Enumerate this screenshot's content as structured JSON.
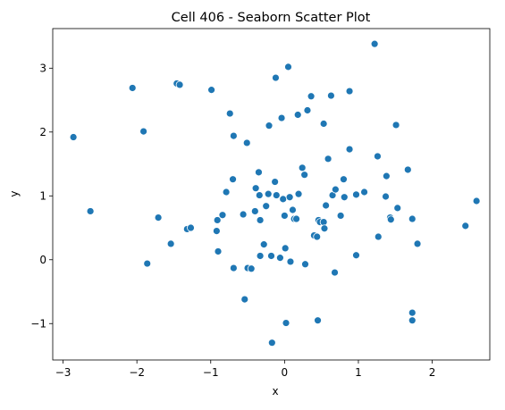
{
  "chart_data": {
    "type": "scatter",
    "title": "Cell 406 - Seaborn Scatter Plot",
    "xlabel": "x",
    "ylabel": "y",
    "color": "#1f77b4",
    "x": [
      -2.86,
      -2.63,
      -2.06,
      -1.91,
      -1.86,
      -1.71,
      -1.54,
      -1.46,
      -1.42,
      -1.32,
      -1.27,
      -0.99,
      -0.92,
      -0.91,
      -0.9,
      -0.84,
      -0.79,
      -0.74,
      -0.7,
      -0.69,
      -0.69,
      -0.56,
      -0.54,
      -0.51,
      -0.5,
      -0.45,
      -0.4,
      -0.39,
      -0.35,
      -0.34,
      -0.33,
      -0.33,
      -0.28,
      -0.25,
      -0.22,
      -0.21,
      -0.18,
      -0.17,
      -0.13,
      -0.12,
      -0.11,
      -0.06,
      -0.04,
      -0.02,
      0.0,
      0.01,
      0.02,
      0.05,
      0.07,
      0.08,
      0.11,
      0.13,
      0.16,
      0.18,
      0.19,
      0.24,
      0.27,
      0.28,
      0.31,
      0.36,
      0.4,
      0.44,
      0.45,
      0.46,
      0.48,
      0.53,
      0.53,
      0.54,
      0.56,
      0.59,
      0.63,
      0.65,
      0.68,
      0.69,
      0.76,
      0.8,
      0.81,
      0.88,
      0.88,
      0.97,
      0.97,
      1.08,
      1.22,
      1.26,
      1.27,
      1.37,
      1.38,
      1.43,
      1.44,
      1.51,
      1.53,
      1.67,
      1.73,
      1.73,
      1.73,
      1.8,
      2.45,
      2.6
    ],
    "y": [
      1.92,
      0.76,
      2.69,
      2.01,
      -0.06,
      0.66,
      0.25,
      2.76,
      2.74,
      0.48,
      0.5,
      2.66,
      0.45,
      0.62,
      0.13,
      0.7,
      1.06,
      2.29,
      1.26,
      1.94,
      -0.13,
      0.71,
      -0.62,
      1.83,
      -0.13,
      -0.14,
      0.76,
      1.12,
      1.37,
      1.01,
      0.62,
      0.06,
      0.24,
      0.84,
      1.03,
      2.1,
      0.06,
      -1.3,
      1.22,
      2.85,
      1.01,
      0.03,
      2.22,
      0.95,
      0.69,
      0.18,
      -0.99,
      3.02,
      0.98,
      -0.03,
      0.78,
      0.64,
      0.64,
      2.27,
      1.03,
      1.44,
      1.33,
      -0.07,
      2.34,
      2.56,
      0.38,
      0.36,
      -0.95,
      0.62,
      0.59,
      2.13,
      0.59,
      0.49,
      0.85,
      1.58,
      2.57,
      1.01,
      -0.2,
      1.1,
      0.69,
      1.26,
      0.98,
      2.64,
      1.73,
      1.02,
      0.07,
      1.06,
      3.38,
      1.62,
      0.36,
      0.99,
      1.31,
      0.66,
      0.63,
      2.11,
      0.81,
      1.41,
      0.64,
      -0.83,
      -0.95,
      0.25,
      0.53,
      0.92
    ],
    "xlim": [
      -3.14,
      2.78
    ],
    "ylim": [
      -1.57,
      3.62
    ],
    "xticks": [
      {
        "value": -3,
        "label": "−3"
      },
      {
        "value": -2,
        "label": "−2"
      },
      {
        "value": -1,
        "label": "−1"
      },
      0,
      1,
      2
    ],
    "yticks": [
      {
        "value": -1,
        "label": "−1"
      },
      0,
      1,
      2,
      3
    ]
  }
}
